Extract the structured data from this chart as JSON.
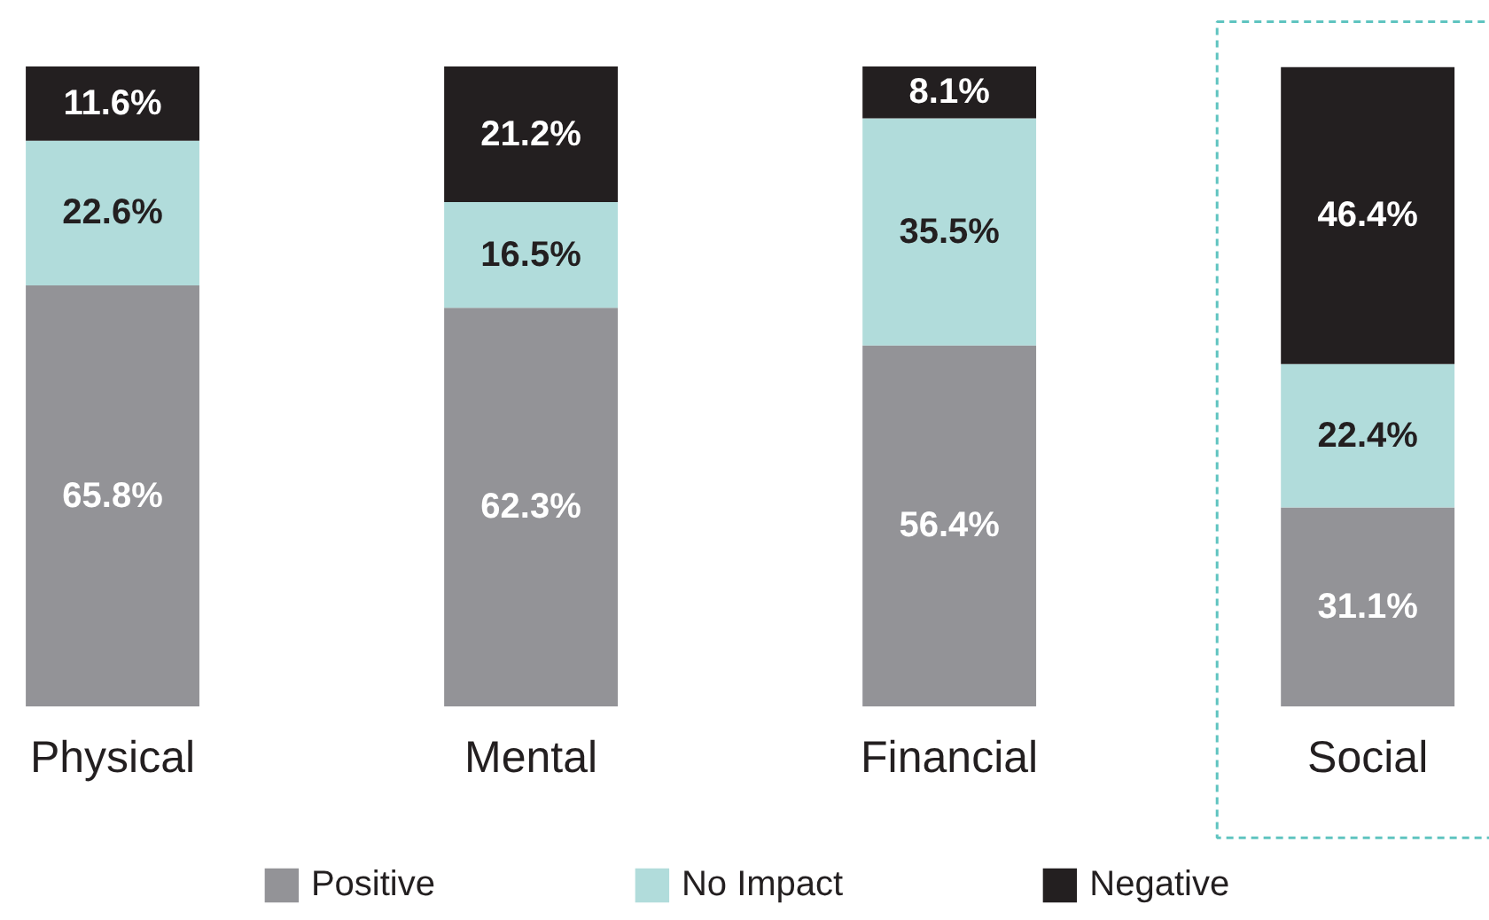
{
  "chart_data": {
    "type": "bar",
    "stacked": true,
    "legend": "bottom",
    "grid": false,
    "categories": [
      "Physical",
      "Mental",
      "Financial",
      "Social"
    ],
    "series": [
      {
        "name": "Positive",
        "color": "#939397",
        "values": [
          65.8,
          62.3,
          56.4,
          31.1
        ],
        "value_labels": [
          "65.8%",
          "62.3%",
          "56.4%",
          "31.1%"
        ]
      },
      {
        "name": "No Impact",
        "color": "#b1dcdb",
        "values": [
          22.6,
          16.5,
          35.5,
          22.4
        ],
        "value_labels": [
          "22.6%",
          "16.5%",
          "35.5%",
          "22.4%"
        ]
      },
      {
        "name": "Negative",
        "color": "#231f20",
        "values": [
          11.6,
          21.2,
          8.1,
          46.4
        ],
        "value_labels": [
          "11.6%",
          "21.2%",
          "8.1%",
          "46.4%"
        ]
      }
    ]
  }
}
